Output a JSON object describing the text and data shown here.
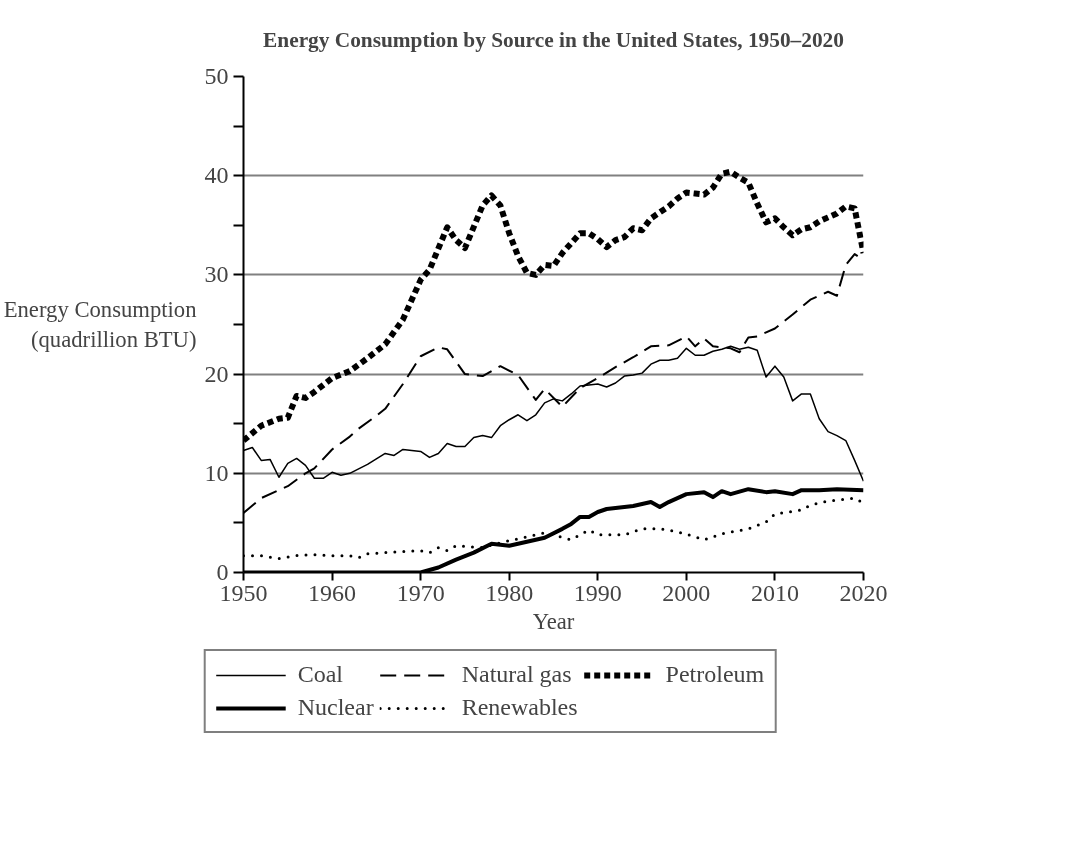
{
  "chart_data": {
    "type": "line",
    "title": "Energy Consumption by Source in the United States, 1950–2020",
    "xlabel": "Year",
    "ylabel": "Energy Consumption\n(quadrillion BTU)",
    "xlim": [
      1950,
      2020
    ],
    "xticks": [
      1950,
      1960,
      1970,
      1980,
      1990,
      2000,
      2010,
      2020
    ],
    "ylim": [
      0,
      50
    ],
    "yticks": [
      0,
      {
        "value": 5,
        "label": null
      },
      10,
      {
        "value": 15,
        "label": null
      },
      20,
      {
        "value": 25,
        "label": null
      },
      30,
      {
        "value": 35,
        "label": null
      },
      40,
      {
        "value": 45,
        "label": null
      },
      50
    ],
    "grid": "y",
    "legend": "bottom",
    "marker": "none",
    "series": [
      {
        "name": "Coal",
        "color": "#000000",
        "line_style": "solid",
        "x": [
          1950,
          1951,
          1952,
          1953,
          1954,
          1955,
          1956,
          1957,
          1958,
          1959,
          1960,
          1961,
          1962,
          1964,
          1966,
          1967,
          1968,
          1970,
          1971,
          1972,
          1973,
          1974,
          1975,
          1976,
          1977,
          1978,
          1979,
          1980,
          1981,
          1982,
          1983,
          1984,
          1985,
          1986,
          1987,
          1988,
          1989,
          1990,
          1991,
          1992,
          1993,
          1994,
          1995,
          1996,
          1997,
          1998,
          1999,
          2000,
          2001,
          2002,
          2003,
          2004,
          2005,
          2006,
          2007,
          2008,
          2009,
          2010,
          2011,
          2012,
          2013,
          2014,
          2015,
          2016,
          2017,
          2018,
          2019,
          2020
        ],
        "values": [
          12.3,
          12.6,
          11.3,
          11.4,
          9.6,
          11.0,
          11.5,
          10.8,
          9.5,
          9.5,
          10.1,
          9.8,
          10.0,
          10.9,
          12.0,
          11.8,
          12.4,
          12.2,
          11.6,
          12.0,
          13.0,
          12.7,
          12.7,
          13.6,
          13.8,
          13.6,
          14.8,
          15.4,
          15.9,
          15.3,
          15.9,
          17.1,
          17.5,
          17.3,
          18.0,
          18.8,
          18.9,
          19.0,
          18.7,
          19.1,
          19.8,
          19.9,
          20.1,
          21.0,
          21.4,
          21.4,
          21.6,
          22.6,
          21.9,
          21.9,
          22.3,
          22.5,
          22.8,
          22.5,
          22.7,
          22.4,
          19.7,
          20.8,
          19.7,
          17.3,
          18.0,
          18.0,
          15.5,
          14.2,
          13.8,
          13.3,
          11.3,
          9.2
        ]
      },
      {
        "name": "Natural gas",
        "color": "#000000",
        "line_style": "dashed",
        "x": [
          1950,
          1952,
          1955,
          1957,
          1958,
          1960,
          1962,
          1963,
          1965,
          1966,
          1968,
          1970,
          1972,
          1973,
          1975,
          1977,
          1979,
          1981,
          1983,
          1984,
          1986,
          1988,
          1990,
          1992,
          1994,
          1996,
          1998,
          2000,
          2001,
          2002,
          2003,
          2005,
          2006,
          2007,
          2008,
          2010,
          2012,
          2014,
          2016,
          2017,
          2018,
          2019,
          2020
        ],
        "values": [
          6.0,
          7.5,
          8.7,
          10.0,
          10.5,
          12.4,
          13.7,
          14.5,
          15.8,
          16.5,
          19.0,
          21.8,
          22.7,
          22.5,
          20.0,
          19.8,
          20.8,
          19.9,
          17.4,
          18.5,
          16.7,
          18.6,
          19.6,
          20.7,
          21.7,
          22.8,
          22.9,
          23.8,
          22.8,
          23.6,
          22.8,
          22.6,
          22.2,
          23.7,
          23.8,
          24.6,
          26.0,
          27.5,
          28.3,
          27.9,
          31.0,
          32.1,
          31.5
        ]
      },
      {
        "name": "Petroleum",
        "color": "#000000",
        "line_style": "dotted",
        "x": [
          1950,
          1952,
          1954,
          1955,
          1956,
          1957,
          1958,
          1960,
          1962,
          1964,
          1966,
          1968,
          1970,
          1971,
          1973,
          1974,
          1975,
          1977,
          1978,
          1979,
          1980,
          1981,
          1982,
          1983,
          1984,
          1985,
          1986,
          1988,
          1989,
          1990,
          1991,
          1992,
          1993,
          1994,
          1995,
          1996,
          1997,
          1998,
          1999,
          2000,
          2001,
          2002,
          2003,
          2004,
          2005,
          2006,
          2007,
          2008,
          2009,
          2010,
          2011,
          2012,
          2013,
          2014,
          2015,
          2016,
          2017,
          2018,
          2019,
          2020
        ],
        "values": [
          13.3,
          14.8,
          15.5,
          15.6,
          17.8,
          17.6,
          18.2,
          19.6,
          20.3,
          21.6,
          23.0,
          25.5,
          29.5,
          30.5,
          34.8,
          33.5,
          32.7,
          37.0,
          38.0,
          37.0,
          34.2,
          31.9,
          30.2,
          30.0,
          31.0,
          30.9,
          32.2,
          34.2,
          34.2,
          33.6,
          32.8,
          33.5,
          33.8,
          34.7,
          34.5,
          35.7,
          36.3,
          36.9,
          37.7,
          38.3,
          38.2,
          38.1,
          38.8,
          40.2,
          40.4,
          39.8,
          39.3,
          37.2,
          35.3,
          35.7,
          34.8,
          34.0,
          34.6,
          34.8,
          35.4,
          35.8,
          36.2,
          36.9,
          36.7,
          32.2
        ]
      },
      {
        "name": "Nuclear",
        "color": "#000000",
        "line_style": "solid",
        "x": [
          1950,
          1970,
          1972,
          1974,
          1976,
          1978,
          1979,
          1980,
          1982,
          1984,
          1986,
          1987,
          1988,
          1989,
          1990,
          1991,
          1992,
          1994,
          1996,
          1997,
          1998,
          2000,
          2002,
          2003,
          2004,
          2005,
          2007,
          2009,
          2010,
          2012,
          2013,
          2015,
          2017,
          2020
        ],
        "values": [
          0,
          0,
          0.5,
          1.3,
          2.0,
          2.9,
          2.8,
          2.7,
          3.1,
          3.5,
          4.4,
          4.9,
          5.6,
          5.6,
          6.1,
          6.4,
          6.5,
          6.7,
          7.1,
          6.6,
          7.1,
          7.9,
          8.1,
          7.6,
          8.2,
          7.9,
          8.4,
          8.1,
          8.2,
          7.9,
          8.3,
          8.3,
          8.4,
          8.3
        ]
      },
      {
        "name": "Renewables",
        "color": "#000000",
        "line_style": "dotted",
        "x": [
          1950,
          1952,
          1954,
          1956,
          1958,
          1960,
          1962,
          1963,
          1964,
          1966,
          1968,
          1970,
          1971,
          1972,
          1973,
          1974,
          1977,
          1979,
          1982,
          1984,
          1987,
          1989,
          1990,
          1993,
          1995,
          1997,
          1999,
          2001,
          2002,
          2004,
          2007,
          2009,
          2010,
          2013,
          2014,
          2016,
          2019,
          2020
        ],
        "values": [
          1.7,
          1.7,
          1.4,
          1.7,
          1.8,
          1.7,
          1.7,
          1.5,
          1.9,
          2.0,
          2.1,
          2.2,
          2.0,
          2.5,
          2.2,
          2.7,
          2.5,
          3.0,
          3.6,
          4.0,
          3.3,
          4.3,
          3.8,
          3.8,
          4.4,
          4.4,
          4.1,
          3.6,
          3.3,
          3.9,
          4.4,
          5.1,
          5.9,
          6.3,
          6.8,
          7.2,
          7.5,
          7.0
        ]
      }
    ]
  }
}
